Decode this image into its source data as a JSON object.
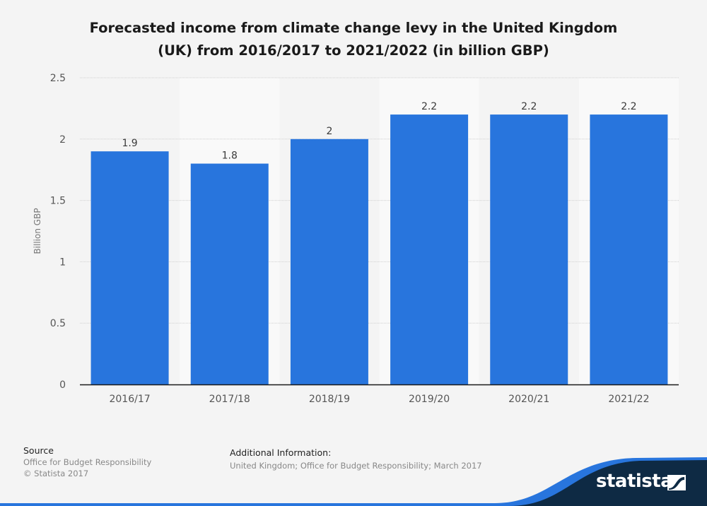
{
  "chart_data": {
    "type": "bar",
    "title": "Forecasted income from climate change levy in the United Kingdom (UK) from 2016/2017 to 2021/2022 (in billion GBP)",
    "title_lines": [
      "Forecasted income from climate change levy in the United Kingdom",
      "(UK) from 2016/2017 to 2021/2022 (in billion GBP)"
    ],
    "xlabel": "",
    "ylabel": "Billion GBP",
    "ylim": [
      0,
      2.5
    ],
    "yticks": [
      0,
      0.5,
      1,
      1.5,
      2,
      2.5
    ],
    "ytick_labels": [
      "0",
      "0.5",
      "1",
      "1.5",
      "2",
      "2.5"
    ],
    "grid": true,
    "categories": [
      "2016/17",
      "2017/18",
      "2018/19",
      "2019/20",
      "2020/21",
      "2021/22"
    ],
    "values": [
      1.9,
      1.8,
      2,
      2.2,
      2.2,
      2.2
    ],
    "data_labels": [
      "1.9",
      "1.8",
      "2",
      "2.2",
      "2.2",
      "2.2"
    ],
    "colors": {
      "bar": "#2875dd",
      "axis": "#1a1a1a",
      "grid": "#cfcfcf",
      "band_alt": "#f9f9f9"
    }
  },
  "footer": {
    "source_header": "Source",
    "source_lines": [
      "Office for Budget Responsibility",
      "© Statista 2017"
    ],
    "additional_header": "Additional Information:",
    "additional_text": "United Kingdom; Office for Budget Responsibility; March 2017"
  },
  "brand": {
    "name": "statista",
    "colors": {
      "dark": "#0e2a44",
      "accent": "#2875dd"
    }
  }
}
